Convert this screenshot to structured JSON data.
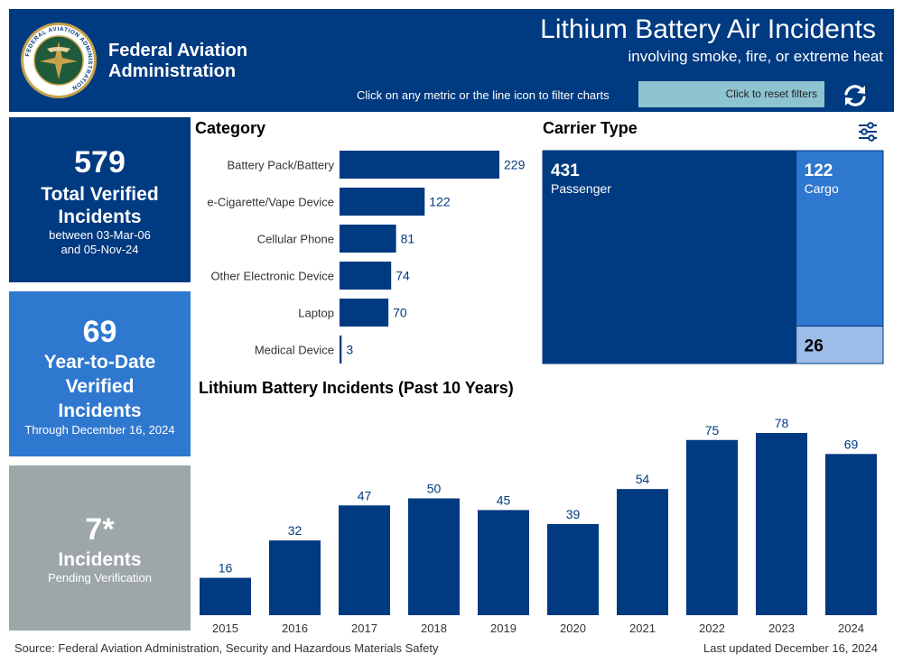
{
  "header": {
    "org_name": "Federal Aviation Administration",
    "logo_text": "FEDERAL AVIATION ADMINISTRATION",
    "title": "Lithium Battery Air Incidents",
    "subtitle": "involving smoke, fire, or extreme heat",
    "hint": "Click on any metric or the line icon to filter charts",
    "reset_label": "Click to reset filters"
  },
  "kpis": {
    "total": {
      "value": "579",
      "label": "Total Verified Incidents",
      "note_line1": "between 03-Mar-06",
      "note_line2": "and 05-Nov-24"
    },
    "ytd": {
      "value": "69",
      "label_line1": "Year-to-Date",
      "label_line2": "Verified",
      "label_line3": "Incidents",
      "note": "Through December 16, 2024"
    },
    "pending": {
      "value": "7*",
      "label": "Incidents",
      "note": "Pending Verification"
    }
  },
  "category_section": {
    "title": "Category"
  },
  "carrier_section": {
    "title": "Carrier Type"
  },
  "trend_section": {
    "title": "Lithium Battery Incidents (Past 10 Years)"
  },
  "colors": {
    "navy": "#003a80",
    "blue": "#2f78cf",
    "light_blue": "#9dbde8",
    "gray": "#9da6a8",
    "reset_button": "#8ec3d0"
  },
  "icons": {
    "logo": "faa-seal-icon",
    "refresh": "refresh-icon",
    "filter": "sliders-icon"
  },
  "chart_data": [
    {
      "type": "bar",
      "orientation": "horizontal",
      "title": "Category",
      "categories": [
        "Battery Pack/Battery",
        "e-Cigarette/Vape Device",
        "Cellular Phone",
        "Other Electronic Device",
        "Laptop",
        "Medical Device"
      ],
      "values": [
        229,
        122,
        81,
        74,
        70,
        3
      ],
      "xlim": [
        0,
        229
      ],
      "grid": false
    },
    {
      "type": "treemap",
      "title": "Carrier Type",
      "items": [
        {
          "label": "Passenger",
          "value": 431
        },
        {
          "label": "Cargo",
          "value": 122
        },
        {
          "label": "",
          "value": 26
        }
      ]
    },
    {
      "type": "bar",
      "title": "Lithium Battery Incidents (Past 10 Years)",
      "categories": [
        "2015",
        "2016",
        "2017",
        "2018",
        "2019",
        "2020",
        "2021",
        "2022",
        "2023",
        "2024"
      ],
      "values": [
        16,
        32,
        47,
        50,
        45,
        39,
        54,
        75,
        78,
        69
      ],
      "ylim": [
        0,
        78
      ],
      "grid": false
    }
  ],
  "footer": {
    "source": "Source: Federal Aviation Administration, Security and Hazardous Materials Safety",
    "updated": "Last updated December 16, 2024"
  }
}
